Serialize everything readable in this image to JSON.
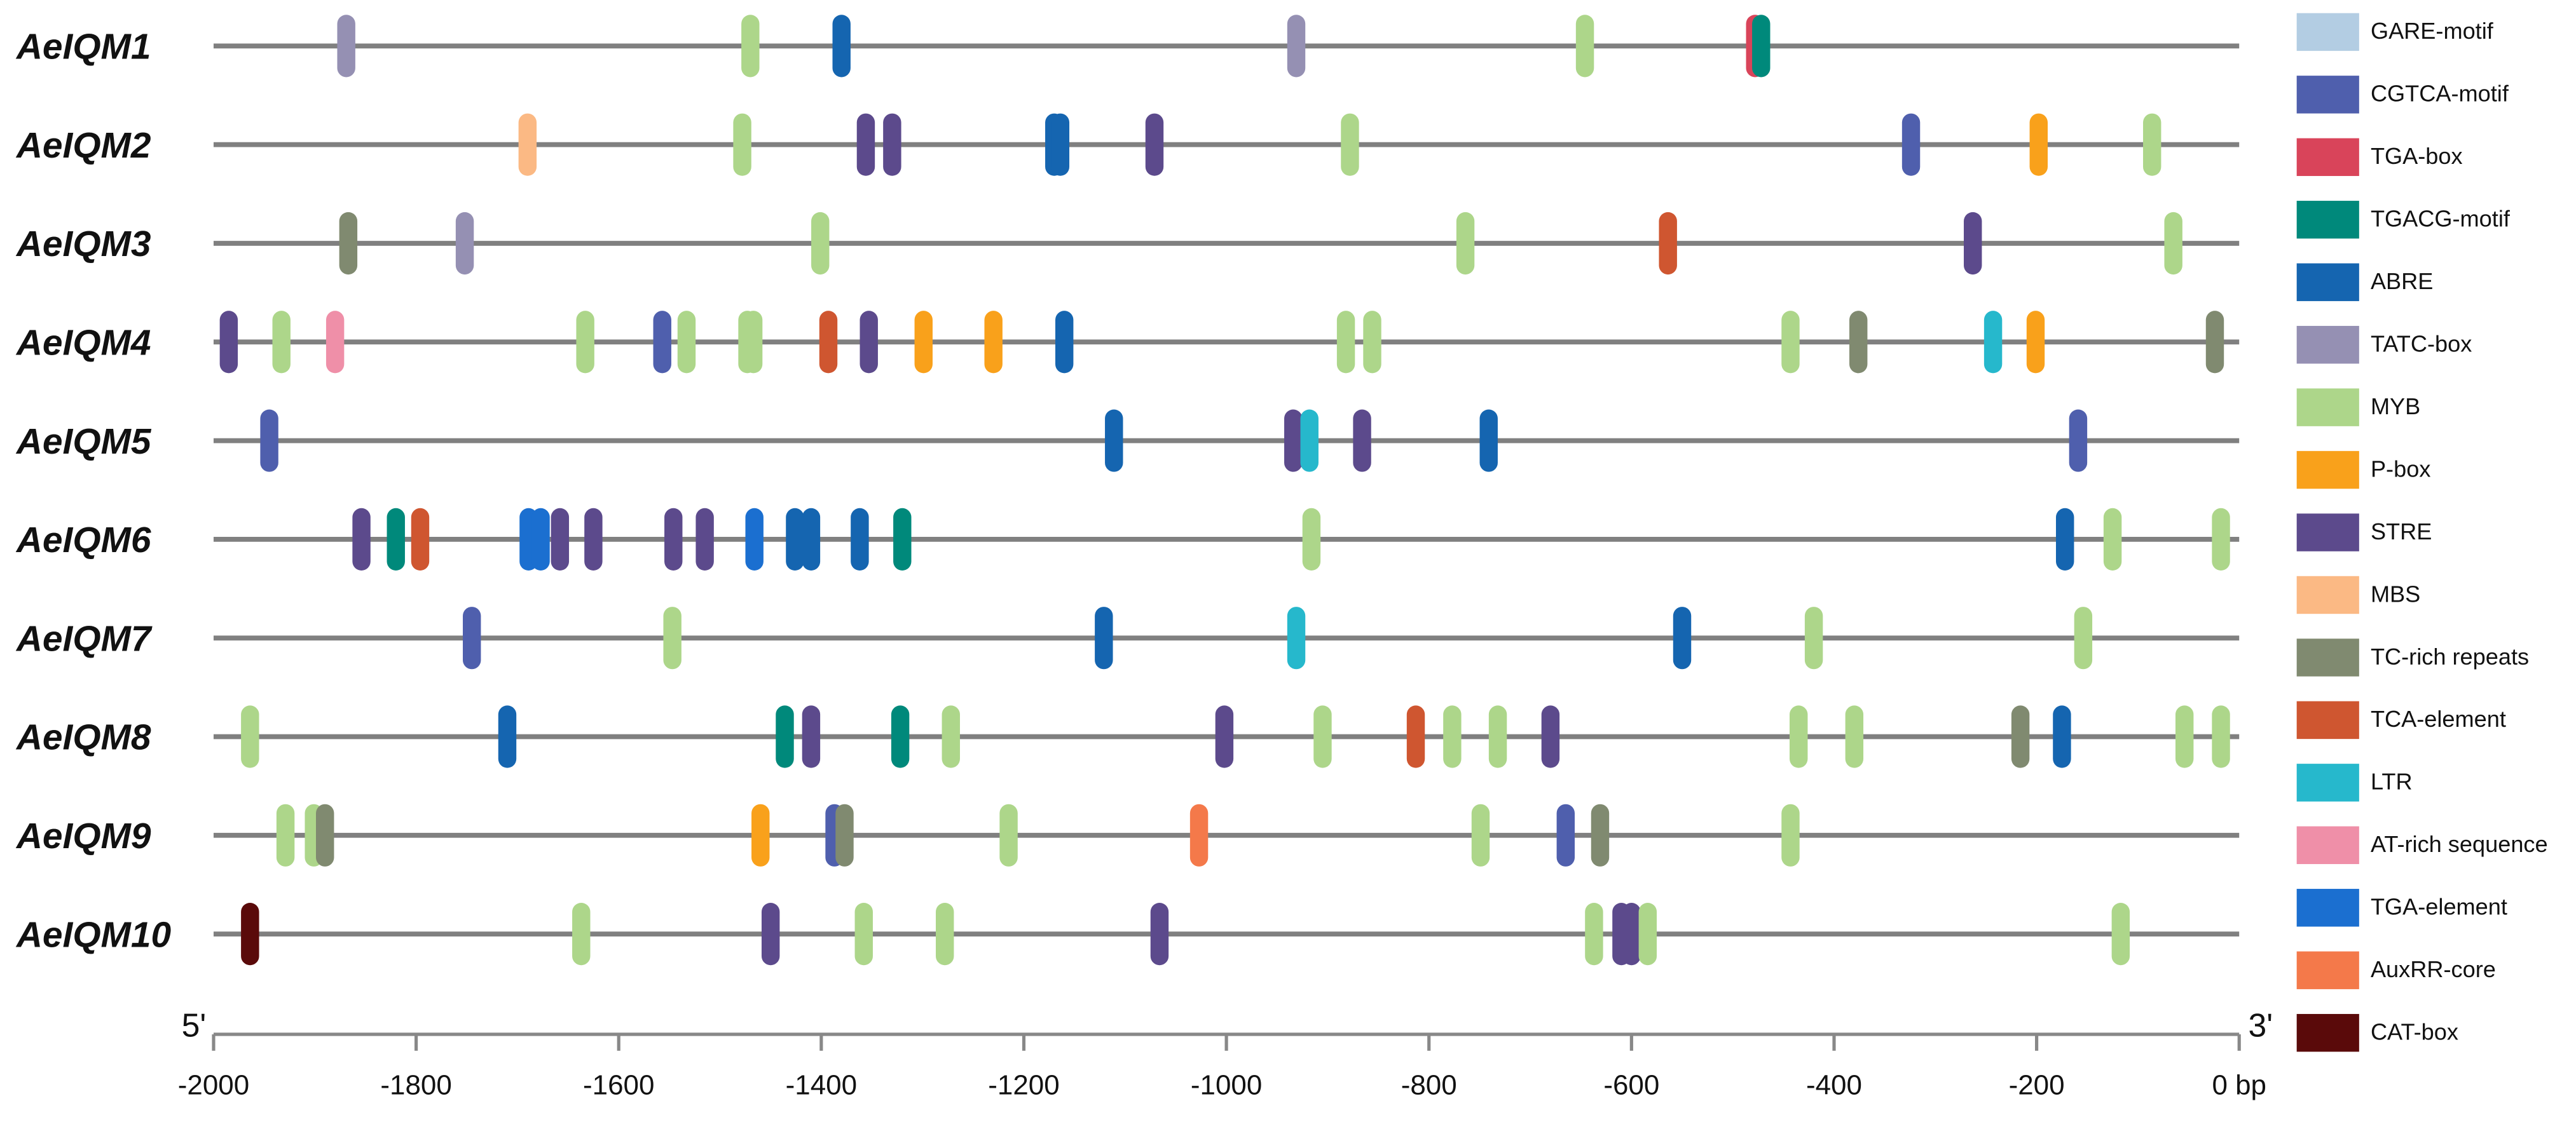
{
  "chart_data": {
    "type": "motif-map",
    "start_label": "5'",
    "end_label": "3'",
    "xlim": [
      -2000,
      0
    ],
    "xticks": [
      -2000,
      -1800,
      -1600,
      -1400,
      -1200,
      -1000,
      -800,
      -600,
      -400,
      -200,
      {
        "value": 0,
        "label": "0 bp"
      }
    ],
    "series": [
      {
        "name": "GARE-motif",
        "color": "#b3cde3"
      },
      {
        "name": "CGTCA-motif",
        "color": "#4f5fad"
      },
      {
        "name": "TGA-box",
        "color": "#d9445a"
      },
      {
        "name": "TGACG-motif",
        "color": "#00897b"
      },
      {
        "name": "ABRE",
        "color": "#1565b0"
      },
      {
        "name": "TATC-box",
        "color": "#9590b3"
      },
      {
        "name": "MYB",
        "color": "#add68a"
      },
      {
        "name": "P-box",
        "color": "#f9a11b"
      },
      {
        "name": "STRE",
        "color": "#5c4a8c"
      },
      {
        "name": "MBS",
        "color": "#fbb984"
      },
      {
        "name": "TC-rich repeats",
        "color": "#808a70"
      },
      {
        "name": "TCA-element",
        "color": "#cf5630"
      },
      {
        "name": "LTR",
        "color": "#26b8cc"
      },
      {
        "name": "AT-rich sequence",
        "color": "#ef8fa8"
      },
      {
        "name": "TGA-element",
        "color": "#1b6fd0"
      },
      {
        "name": "AuxRR-core",
        "color": "#f4794a"
      },
      {
        "name": "CAT-box",
        "color": "#5a0a0a"
      }
    ],
    "genes": [
      {
        "name": "AeIQM1",
        "elements": [
          {
            "motif": "TATC-box",
            "x": -1869
          },
          {
            "motif": "MYB",
            "x": -1470
          },
          {
            "motif": "ABRE",
            "x": -1380
          },
          {
            "motif": "TATC-box",
            "x": -931
          },
          {
            "motif": "MYB",
            "x": -646
          },
          {
            "motif": "TGA-box",
            "x": -478
          },
          {
            "motif": "TGACG-motif",
            "x": -472
          }
        ]
      },
      {
        "name": "AeIQM2",
        "elements": [
          {
            "motif": "MBS",
            "x": -1690
          },
          {
            "motif": "MYB",
            "x": -1478
          },
          {
            "motif": "STRE",
            "x": -1356
          },
          {
            "motif": "STRE",
            "x": -1330
          },
          {
            "motif": "ABRE",
            "x": -1170
          },
          {
            "motif": "ABRE",
            "x": -1164
          },
          {
            "motif": "STRE",
            "x": -1071
          },
          {
            "motif": "MYB",
            "x": -878
          },
          {
            "motif": "CGTCA-motif",
            "x": -324
          },
          {
            "motif": "P-box",
            "x": -198
          },
          {
            "motif": "MYB",
            "x": -86
          }
        ]
      },
      {
        "name": "AeIQM3",
        "elements": [
          {
            "motif": "TC-rich repeats",
            "x": -1867
          },
          {
            "motif": "TATC-box",
            "x": -1752
          },
          {
            "motif": "MYB",
            "x": -1401
          },
          {
            "motif": "MYB",
            "x": -764
          },
          {
            "motif": "TCA-element",
            "x": -564
          },
          {
            "motif": "STRE",
            "x": -263
          },
          {
            "motif": "MYB",
            "x": -65
          }
        ]
      },
      {
        "name": "AeIQM4",
        "elements": [
          {
            "motif": "STRE",
            "x": -1985
          },
          {
            "motif": "MYB",
            "x": -1933
          },
          {
            "motif": "AT-rich sequence",
            "x": -1880
          },
          {
            "motif": "MYB",
            "x": -1633
          },
          {
            "motif": "CGTCA-motif",
            "x": -1557
          },
          {
            "motif": "MYB",
            "x": -1533
          },
          {
            "motif": "MYB",
            "x": -1473
          },
          {
            "motif": "MYB",
            "x": -1467
          },
          {
            "motif": "TCA-element",
            "x": -1393
          },
          {
            "motif": "STRE",
            "x": -1353
          },
          {
            "motif": "P-box",
            "x": -1299
          },
          {
            "motif": "P-box",
            "x": -1230
          },
          {
            "motif": "ABRE",
            "x": -1160
          },
          {
            "motif": "MYB",
            "x": -882
          },
          {
            "motif": "MYB",
            "x": -856
          },
          {
            "motif": "MYB",
            "x": -443
          },
          {
            "motif": "TC-rich repeats",
            "x": -376
          },
          {
            "motif": "LTR",
            "x": -243
          },
          {
            "motif": "P-box",
            "x": -201
          },
          {
            "motif": "TC-rich repeats",
            "x": -24
          }
        ]
      },
      {
        "name": "AeIQM5",
        "elements": [
          {
            "motif": "CGTCA-motif",
            "x": -1945
          },
          {
            "motif": "ABRE",
            "x": -1111
          },
          {
            "motif": "STRE",
            "x": -934
          },
          {
            "motif": "LTR",
            "x": -918
          },
          {
            "motif": "STRE",
            "x": -866
          },
          {
            "motif": "ABRE",
            "x": -741
          },
          {
            "motif": "CGTCA-motif",
            "x": -159
          }
        ]
      },
      {
        "name": "AeIQM6",
        "elements": [
          {
            "motif": "STRE",
            "x": -1854
          },
          {
            "motif": "TGACG-motif",
            "x": -1820
          },
          {
            "motif": "TCA-element",
            "x": -1796
          },
          {
            "motif": "TGA-element",
            "x": -1689
          },
          {
            "motif": "TGA-element",
            "x": -1677
          },
          {
            "motif": "STRE",
            "x": -1658
          },
          {
            "motif": "STRE",
            "x": -1625
          },
          {
            "motif": "STRE",
            "x": -1546
          },
          {
            "motif": "STRE",
            "x": -1515
          },
          {
            "motif": "TGA-element",
            "x": -1466
          },
          {
            "motif": "ABRE",
            "x": -1426
          },
          {
            "motif": "ABRE",
            "x": -1410
          },
          {
            "motif": "ABRE",
            "x": -1362
          },
          {
            "motif": "TGACG-motif",
            "x": -1320
          },
          {
            "motif": "MYB",
            "x": -916
          },
          {
            "motif": "ABRE",
            "x": -172
          },
          {
            "motif": "MYB",
            "x": -125
          },
          {
            "motif": "MYB",
            "x": -18
          }
        ]
      },
      {
        "name": "AeIQM7",
        "elements": [
          {
            "motif": "CGTCA-motif",
            "x": -1745
          },
          {
            "motif": "MYB",
            "x": -1547
          },
          {
            "motif": "ABRE",
            "x": -1121
          },
          {
            "motif": "LTR",
            "x": -931
          },
          {
            "motif": "ABRE",
            "x": -550
          },
          {
            "motif": "MYB",
            "x": -420
          },
          {
            "motif": "MYB",
            "x": -154
          }
        ]
      },
      {
        "name": "AeIQM8",
        "elements": [
          {
            "motif": "MYB",
            "x": -1964
          },
          {
            "motif": "ABRE",
            "x": -1710
          },
          {
            "motif": "TGACG-motif",
            "x": -1436
          },
          {
            "motif": "STRE",
            "x": -1410
          },
          {
            "motif": "TGACG-motif",
            "x": -1322
          },
          {
            "motif": "MYB",
            "x": -1272
          },
          {
            "motif": "STRE",
            "x": -1002
          },
          {
            "motif": "MYB",
            "x": -905
          },
          {
            "motif": "TCA-element",
            "x": -813
          },
          {
            "motif": "MYB",
            "x": -777
          },
          {
            "motif": "MYB",
            "x": -732
          },
          {
            "motif": "STRE",
            "x": -680
          },
          {
            "motif": "MYB",
            "x": -435
          },
          {
            "motif": "MYB",
            "x": -380
          },
          {
            "motif": "TC-rich repeats",
            "x": -216
          },
          {
            "motif": "ABRE",
            "x": -175
          },
          {
            "motif": "MYB",
            "x": -54
          },
          {
            "motif": "MYB",
            "x": -18
          }
        ]
      },
      {
        "name": "AeIQM9",
        "elements": [
          {
            "motif": "MYB",
            "x": -1929
          },
          {
            "motif": "MYB",
            "x": -1901
          },
          {
            "motif": "TC-rich repeats",
            "x": -1890
          },
          {
            "motif": "P-box",
            "x": -1460
          },
          {
            "motif": "CGTCA-motif",
            "x": -1387
          },
          {
            "motif": "TC-rich repeats",
            "x": -1377
          },
          {
            "motif": "MYB",
            "x": -1215
          },
          {
            "motif": "AuxRR-core",
            "x": -1027
          },
          {
            "motif": "MYB",
            "x": -749
          },
          {
            "motif": "CGTCA-motif",
            "x": -665
          },
          {
            "motif": "TC-rich repeats",
            "x": -631
          },
          {
            "motif": "MYB",
            "x": -443
          }
        ]
      },
      {
        "name": "AeIQM10",
        "elements": [
          {
            "motif": "CAT-box",
            "x": -1964
          },
          {
            "motif": "MYB",
            "x": -1637
          },
          {
            "motif": "STRE",
            "x": -1450
          },
          {
            "motif": "MYB",
            "x": -1358
          },
          {
            "motif": "MYB",
            "x": -1278
          },
          {
            "motif": "STRE",
            "x": -1066
          },
          {
            "motif": "MYB",
            "x": -637
          },
          {
            "motif": "STRE",
            "x": -610
          },
          {
            "motif": "STRE",
            "x": -600
          },
          {
            "motif": "MYB",
            "x": -584
          },
          {
            "motif": "MYB",
            "x": -117
          }
        ]
      }
    ]
  }
}
